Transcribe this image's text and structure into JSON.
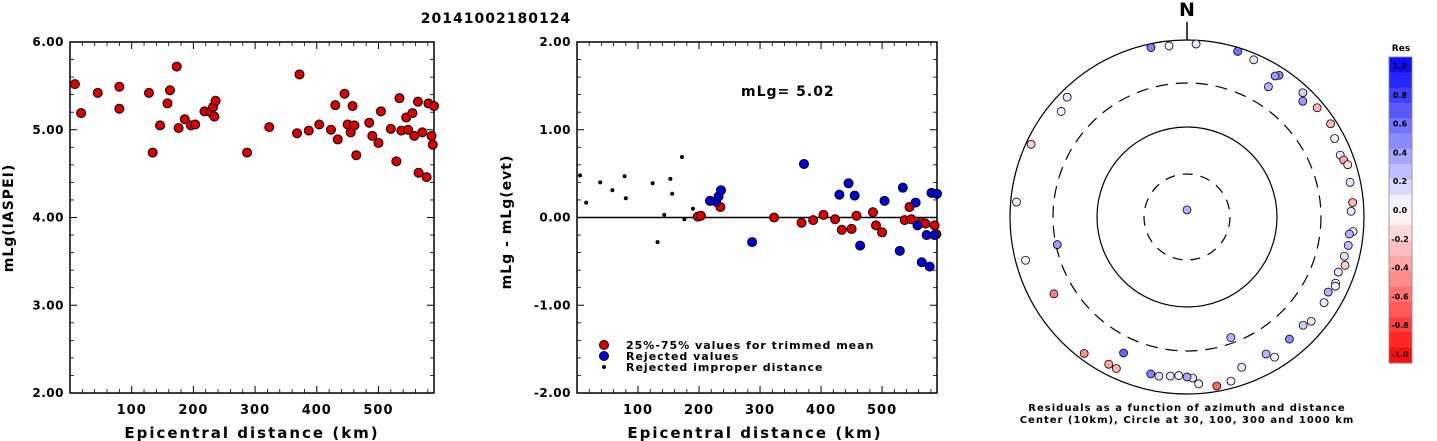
{
  "title": "20141002180124",
  "colors": {
    "red": "#dd0000",
    "blue": "#0000dd",
    "black": "#000000"
  },
  "chart_data": [
    {
      "type": "scatter",
      "xlabel": "Epicentral distance (km)",
      "ylabel": "mLg(IASPEI)",
      "xlim": [
        0,
        590
      ],
      "ylim": [
        2.0,
        6.0
      ],
      "xticks": [
        "100",
        "200",
        "300",
        "400",
        "500"
      ],
      "yticks": [
        "2.00",
        "3.00",
        "4.00",
        "5.00",
        "6.00"
      ],
      "points": [
        [
          8,
          5.52
        ],
        [
          18,
          5.19
        ],
        [
          45,
          5.42
        ],
        [
          80,
          5.49
        ],
        [
          80,
          5.24
        ],
        [
          128,
          5.42
        ],
        [
          134,
          4.74
        ],
        [
          146,
          5.05
        ],
        [
          158,
          5.3
        ],
        [
          162,
          5.45
        ],
        [
          173,
          5.72
        ],
        [
          176,
          5.02
        ],
        [
          186,
          5.12
        ],
        [
          196,
          5.05
        ],
        [
          203,
          5.06
        ],
        [
          218,
          5.21
        ],
        [
          228,
          5.2
        ],
        [
          232,
          5.26
        ],
        [
          234,
          5.15
        ],
        [
          236,
          5.33
        ],
        [
          287,
          4.74
        ],
        [
          323,
          5.03
        ],
        [
          368,
          4.96
        ],
        [
          372,
          5.63
        ],
        [
          387,
          4.99
        ],
        [
          404,
          5.06
        ],
        [
          423,
          5.0
        ],
        [
          430,
          5.28
        ],
        [
          434,
          4.89
        ],
        [
          445,
          5.41
        ],
        [
          450,
          5.06
        ],
        [
          455,
          4.97
        ],
        [
          458,
          5.27
        ],
        [
          461,
          5.05
        ],
        [
          464,
          4.71
        ],
        [
          485,
          5.08
        ],
        [
          490,
          4.93
        ],
        [
          500,
          4.85
        ],
        [
          504,
          5.21
        ],
        [
          520,
          5.01
        ],
        [
          529,
          4.64
        ],
        [
          534,
          5.36
        ],
        [
          537,
          4.99
        ],
        [
          545,
          5.14
        ],
        [
          548,
          5.0
        ],
        [
          555,
          5.19
        ],
        [
          558,
          4.93
        ],
        [
          564,
          5.32
        ],
        [
          565,
          4.51
        ],
        [
          571,
          4.97
        ],
        [
          578,
          4.46
        ],
        [
          581,
          5.3
        ],
        [
          586,
          4.93
        ],
        [
          588,
          4.83
        ],
        [
          590,
          5.27
        ]
      ]
    },
    {
      "type": "scatter",
      "xlabel": "Epicentral distance (km)",
      "ylabel": "mLg - mLg(evt)",
      "xlim": [
        0,
        590
      ],
      "ylim": [
        -2.0,
        2.0
      ],
      "xticks": [
        "100",
        "200",
        "300",
        "400",
        "500"
      ],
      "yticks": [
        "-2.00",
        "-1.00",
        "0.00",
        "1.00",
        "2.00"
      ],
      "annotation": "mLg= 5.02",
      "legend": [
        {
          "label": "25%-75% values for trimmed mean",
          "color": "red"
        },
        {
          "label": "Rejected values",
          "color": "blue"
        },
        {
          "label": "Rejected improper distance",
          "color": "black"
        }
      ],
      "series": [
        {
          "name": "25%-75% values for trimmed mean",
          "color": "red",
          "points": [
            [
              198,
              0.01
            ],
            [
              203,
              0.02
            ],
            [
              235,
              0.12
            ],
            [
              323,
              0.0
            ],
            [
              368,
              -0.06
            ],
            [
              387,
              -0.03
            ],
            [
              404,
              0.03
            ],
            [
              423,
              -0.02
            ],
            [
              434,
              -0.14
            ],
            [
              450,
              -0.13
            ],
            [
              458,
              0.02
            ],
            [
              485,
              0.06
            ],
            [
              490,
              -0.09
            ],
            [
              500,
              -0.17
            ],
            [
              537,
              -0.03
            ],
            [
              545,
              0.12
            ],
            [
              548,
              -0.02
            ],
            [
              564,
              -0.05
            ],
            [
              571,
              -0.07
            ],
            [
              586,
              -0.09
            ],
            [
              589,
              -0.19
            ]
          ]
        },
        {
          "name": "Rejected values",
          "color": "blue",
          "points": [
            [
              218,
              0.19
            ],
            [
              228,
              0.18
            ],
            [
              232,
              0.24
            ],
            [
              236,
              0.31
            ],
            [
              287,
              -0.28
            ],
            [
              372,
              0.61
            ],
            [
              430,
              0.26
            ],
            [
              445,
              0.39
            ],
            [
              455,
              0.25
            ],
            [
              464,
              -0.32
            ],
            [
              504,
              0.19
            ],
            [
              529,
              -0.38
            ],
            [
              534,
              0.34
            ],
            [
              555,
              0.17
            ],
            [
              558,
              -0.09
            ],
            [
              565,
              -0.51
            ],
            [
              573,
              -0.2
            ],
            [
              578,
              -0.56
            ],
            [
              581,
              0.28
            ],
            [
              586,
              -0.2
            ],
            [
              590,
              0.27
            ]
          ]
        },
        {
          "name": "Rejected improper distance",
          "color": "black",
          "points": [
            [
              5,
              0.48
            ],
            [
              15,
              0.17
            ],
            [
              38,
              0.4
            ],
            [
              58,
              0.31
            ],
            [
              78,
              0.47
            ],
            [
              80,
              0.22
            ],
            [
              124,
              0.39
            ],
            [
              132,
              -0.28
            ],
            [
              143,
              0.03
            ],
            [
              153,
              0.44
            ],
            [
              156,
              0.27
            ],
            [
              172,
              0.69
            ],
            [
              176,
              -0.02
            ],
            [
              190,
              0.1
            ]
          ]
        }
      ]
    },
    {
      "type": "polar-scatter",
      "north_label": "N",
      "caption": [
        "Residuals as a function of azimuth and distance",
        "Center (10km), Circle at 30, 100, 300 and 1000 km"
      ],
      "rings_km": [
        30,
        100,
        300,
        1000
      ],
      "colorbar": {
        "title": "Res",
        "ticks": [
          "1.0",
          "0.8",
          "0.6",
          "0.4",
          "0.2",
          "0.0",
          "-0.2",
          "-0.4",
          "-0.6",
          "-0.8",
          "-1.0"
        ],
        "max_color": "#0000ff",
        "min_color": "#ff0000"
      },
      "stations": [
        [
          0,
          12,
          0.3
        ],
        [
          348,
          900,
          0.5
        ],
        [
          354,
          870,
          0.05
        ],
        [
          3,
          900,
          0.1
        ],
        [
          17,
          900,
          0.55
        ],
        [
          23,
          840,
          0.1
        ],
        [
          33,
          800,
          0.45
        ],
        [
          32,
          740,
          0.4
        ],
        [
          43,
          820,
          0.2
        ],
        [
          50,
          820,
          -0.3
        ],
        [
          57,
          850,
          -0.3
        ],
        [
          62,
          760,
          0.05
        ],
        [
          68,
          720,
          0.1
        ],
        [
          70,
          750,
          -0.35
        ],
        [
          72,
          800,
          -0.15
        ],
        [
          78,
          750,
          0.1
        ],
        [
          85,
          740,
          -0.3
        ],
        [
          88,
          700,
          0.1
        ],
        [
          95,
          750,
          0.1
        ],
        [
          96,
          680,
          0.3
        ],
        [
          100,
          690,
          0.25
        ],
        [
          104,
          660,
          0.1
        ],
        [
          107,
          720,
          -0.2
        ],
        [
          110,
          640,
          0.1
        ],
        [
          114,
          670,
          0.05
        ],
        [
          115,
          690,
          0.05
        ],
        [
          118,
          620,
          0.3
        ],
        [
          122,
          650,
          0.1
        ],
        [
          130,
          660,
          -0.1
        ],
        [
          133,
          600,
          0.2
        ],
        [
          140,
          610,
          0.45
        ],
        [
          148,
          720,
          0.05
        ],
        [
          150,
          590,
          0.3
        ],
        [
          160,
          620,
          0.1
        ],
        [
          165,
          820,
          0.05
        ],
        [
          170,
          860,
          -0.6
        ],
        [
          176,
          760,
          0.05
        ],
        [
          178,
          640,
          0.1
        ],
        [
          180,
          620,
          0.35
        ],
        [
          183,
          600,
          0.05
        ],
        [
          186,
          620,
          0.1
        ],
        [
          190,
          650,
          0.15
        ],
        [
          193,
          640,
          0.5
        ],
        [
          205,
          760,
          -0.3
        ],
        [
          208,
          750,
          -0.35
        ],
        [
          217,
          840,
          -0.45
        ],
        [
          240,
          520,
          -0.5
        ],
        [
          255,
          760,
          0.05
        ],
        [
          275,
          850,
          0.05
        ],
        [
          295,
          870,
          -0.2
        ],
        [
          310,
          700,
          0.05
        ],
        [
          315,
          810,
          0.1
        ],
        [
          160,
          260,
          0.3
        ],
        [
          205,
          470,
          0.6
        ],
        [
          258,
          290,
          0.4
        ],
        [
          32,
          520,
          0.3
        ],
        [
          45,
          690,
          0.4
        ]
      ]
    }
  ]
}
